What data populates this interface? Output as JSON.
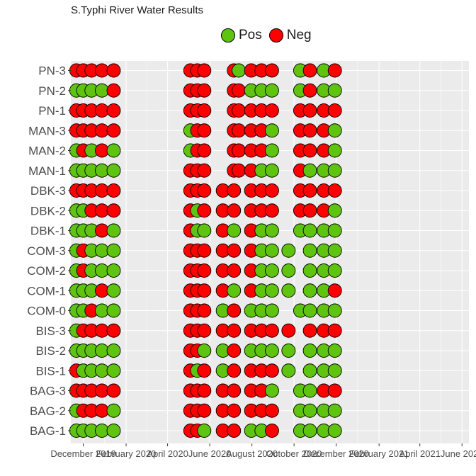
{
  "title": "S.Typhi River Water Results",
  "legend": [
    {
      "label": "Pos",
      "color": "#5ec40f"
    },
    {
      "label": "Neg",
      "color": "#ff0000"
    }
  ],
  "chart_data": {
    "type": "scatter",
    "title": "S.Typhi River Water Results",
    "xlabel": "",
    "ylabel": "",
    "x_axis": "date",
    "xlim": [
      "2019-11-13",
      "2021-06-11"
    ],
    "x_ticks": [
      {
        "date": "2019-12-01",
        "label": "December 2019"
      },
      {
        "date": "2020-02-01",
        "label": "February 2020"
      },
      {
        "date": "2020-04-01",
        "label": "April 2020"
      },
      {
        "date": "2020-06-01",
        "label": "June 2020"
      },
      {
        "date": "2020-08-01",
        "label": "August 2020"
      },
      {
        "date": "2020-10-01",
        "label": "October 2020"
      },
      {
        "date": "2020-12-01",
        "label": "December 2020"
      },
      {
        "date": "2021-02-01",
        "label": "February 2021"
      },
      {
        "date": "2021-04-01",
        "label": "April 2021"
      },
      {
        "date": "2021-06-01",
        "label": "June 2021"
      }
    ],
    "sites": [
      "PN-3",
      "PN-2",
      "PN-1",
      "MAN-3",
      "MAN-2",
      "MAN-1",
      "DBK-3",
      "DBK-2",
      "DBK-1",
      "COM-3",
      "COM-2",
      "COM-1",
      "COM-0",
      "BIS-3",
      "BIS-2",
      "BIS-1",
      "BAG-3",
      "BAG-2",
      "BAG-1"
    ],
    "dates": [
      "2019-11-21",
      "2019-12-01",
      "2019-12-13",
      "2019-12-28",
      "2020-01-14",
      "2020-02-02",
      "2020-05-04",
      "2020-05-14",
      "2020-05-24",
      "2020-06-20",
      "2020-07-06",
      "2020-07-13",
      "2020-07-31",
      "2020-08-15",
      "2020-08-30",
      "2020-09-23",
      "2020-10-10",
      "2020-10-24",
      "2020-11-13",
      "2020-11-29",
      "2020-12-12",
      "2021-01-03"
    ],
    "results": {
      "PN-3": [
        0,
        0,
        0,
        0,
        0,
        null,
        0,
        0,
        0,
        null,
        0,
        1,
        0,
        0,
        0,
        null,
        1,
        0,
        1,
        0,
        null,
        null
      ],
      "PN-2": [
        1,
        1,
        1,
        1,
        0,
        null,
        0,
        0,
        0,
        null,
        0,
        0,
        1,
        1,
        1,
        null,
        1,
        0,
        1,
        1,
        null,
        null
      ],
      "PN-1": [
        0,
        0,
        0,
        0,
        0,
        null,
        0,
        0,
        0,
        null,
        0,
        0,
        0,
        0,
        0,
        null,
        0,
        0,
        0,
        0,
        null,
        null
      ],
      "MAN-3": [
        0,
        0,
        0,
        0,
        0,
        null,
        1,
        0,
        0,
        null,
        0,
        0,
        0,
        0,
        1,
        null,
        0,
        0,
        0,
        1,
        null,
        null
      ],
      "MAN-2": [
        1,
        0,
        1,
        0,
        1,
        null,
        1,
        0,
        0,
        null,
        0,
        0,
        0,
        0,
        1,
        null,
        0,
        0,
        0,
        1,
        null,
        null
      ],
      "MAN-1": [
        1,
        1,
        1,
        1,
        1,
        null,
        0,
        0,
        0,
        null,
        0,
        0,
        0,
        1,
        1,
        null,
        0,
        1,
        1,
        1,
        null,
        null
      ],
      "DBK-3": [
        0,
        0,
        0,
        0,
        0,
        null,
        0,
        0,
        0,
        0,
        0,
        null,
        0,
        0,
        0,
        null,
        0,
        0,
        0,
        0,
        null,
        null
      ],
      "DBK-2": [
        1,
        1,
        0,
        0,
        0,
        null,
        0,
        1,
        0,
        0,
        0,
        null,
        0,
        0,
        0,
        null,
        0,
        0,
        0,
        1,
        null,
        null
      ],
      "DBK-1": [
        1,
        1,
        1,
        0,
        1,
        null,
        0,
        1,
        1,
        0,
        1,
        null,
        0,
        1,
        1,
        null,
        1,
        1,
        1,
        1,
        null,
        null
      ],
      "COM-3": [
        1,
        0,
        1,
        1,
        1,
        null,
        0,
        0,
        0,
        0,
        0,
        null,
        0,
        1,
        1,
        1,
        null,
        1,
        1,
        1,
        null,
        null
      ],
      "COM-2": [
        1,
        0,
        1,
        1,
        1,
        null,
        0,
        0,
        0,
        0,
        0,
        null,
        0,
        1,
        1,
        1,
        null,
        1,
        1,
        1,
        null,
        null
      ],
      "COM-1": [
        1,
        1,
        1,
        0,
        1,
        null,
        0,
        0,
        0,
        0,
        1,
        null,
        0,
        1,
        1,
        1,
        null,
        1,
        1,
        0,
        null,
        null
      ],
      "COM-0": [
        1,
        1,
        0,
        1,
        1,
        null,
        0,
        0,
        0,
        1,
        0,
        null,
        1,
        1,
        1,
        null,
        1,
        1,
        1,
        1,
        null,
        null
      ],
      "BIS-3": [
        1,
        0,
        0,
        0,
        0,
        null,
        0,
        0,
        0,
        0,
        0,
        null,
        0,
        0,
        0,
        0,
        null,
        0,
        0,
        0,
        null,
        null
      ],
      "BIS-2": [
        1,
        1,
        1,
        1,
        1,
        null,
        0,
        0,
        1,
        1,
        0,
        null,
        1,
        1,
        1,
        1,
        null,
        1,
        1,
        1,
        null,
        null
      ],
      "BIS-1": [
        0,
        1,
        1,
        1,
        1,
        null,
        0,
        1,
        0,
        1,
        0,
        null,
        0,
        0,
        0,
        1,
        null,
        1,
        1,
        1,
        null,
        null
      ],
      "BAG-3": [
        0,
        0,
        0,
        0,
        0,
        null,
        0,
        0,
        0,
        0,
        0,
        null,
        0,
        0,
        1,
        null,
        1,
        1,
        0,
        0,
        null,
        null
      ],
      "BAG-2": [
        1,
        0,
        0,
        0,
        1,
        null,
        0,
        0,
        0,
        0,
        0,
        null,
        0,
        0,
        0,
        null,
        1,
        1,
        1,
        1,
        null,
        null
      ],
      "BAG-1": [
        1,
        1,
        1,
        1,
        1,
        null,
        0,
        0,
        1,
        0,
        0,
        null,
        1,
        1,
        0,
        null,
        1,
        1,
        1,
        1,
        null,
        null
      ]
    },
    "result_labels": {
      "1": "Pos",
      "0": "Neg"
    },
    "grid": true,
    "legend_position": "top",
    "colors": {
      "Pos": "#5ec40f",
      "Neg": "#ff0000",
      "panel": "#ebebeb",
      "grid": "#ffffff"
    }
  }
}
